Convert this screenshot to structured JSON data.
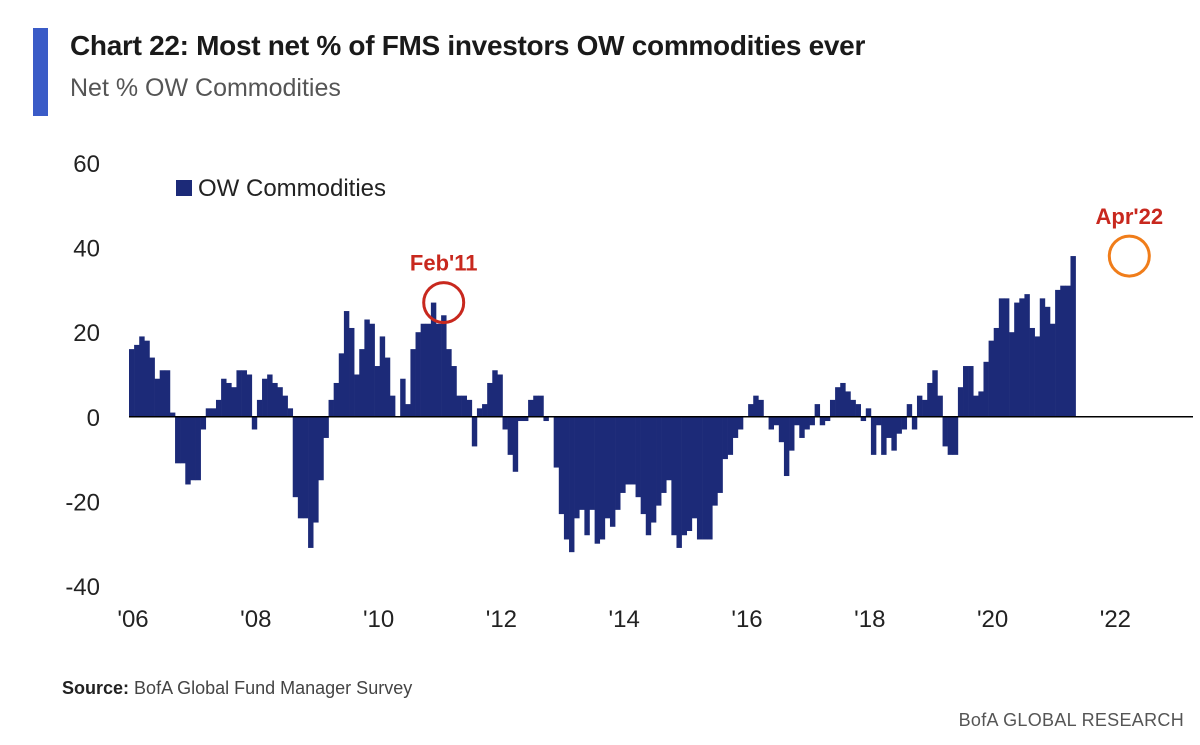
{
  "header": {
    "title": "Chart 22: Most net % of FMS investors OW commodities ever",
    "subtitle": "Net % OW Commodities"
  },
  "footer": {
    "source_label": "Source:",
    "source_text": "BofA Global Fund Manager Survey",
    "brand": "BofA GLOBAL RESEARCH"
  },
  "colors": {
    "bar": "#1c2a78",
    "accent": "#3a5bc7",
    "annotation_red": "#c8281e",
    "annotation_orange": "#f07d1a"
  },
  "chart_data": {
    "type": "bar",
    "title": "Chart 22: Most net % of FMS investors OW commodities ever",
    "subtitle": "Net % OW Commodities",
    "xlabel": "",
    "ylabel": "",
    "ylim": [
      -40,
      60
    ],
    "yticks": [
      60,
      40,
      20,
      0,
      -20,
      -40
    ],
    "xticks": [
      "'06",
      "'08",
      "'10",
      "'12",
      "'14",
      "'16",
      "'18",
      "'20",
      "'22"
    ],
    "xtick_years": [
      2006,
      2008,
      2010,
      2012,
      2014,
      2016,
      2018,
      2020,
      2022
    ],
    "x_start": "2006-01",
    "legend": {
      "entry": "OW Commodities",
      "placement": "top-left"
    },
    "grid": false,
    "series": [
      {
        "name": "OW Commodities",
        "values": [
          16,
          17,
          19,
          18,
          14,
          9,
          11,
          11,
          1,
          -11,
          -11,
          -16,
          -15,
          -15,
          -3,
          2,
          2,
          4,
          9,
          8,
          7,
          11,
          11,
          10,
          -3,
          4,
          9,
          10,
          8,
          7,
          5,
          2,
          -19,
          -24,
          -24,
          -31,
          -25,
          -15,
          -5,
          4,
          8,
          15,
          25,
          21,
          10,
          16,
          23,
          22,
          12,
          19,
          14,
          5,
          0,
          9,
          3,
          16,
          20,
          22,
          22,
          27,
          22,
          24,
          16,
          12,
          5,
          5,
          4,
          -7,
          2,
          3,
          8,
          11,
          10,
          -3,
          -9,
          -13,
          -1,
          -1,
          4,
          5,
          5,
          -1,
          0,
          -12,
          -23,
          -29,
          -32,
          -24,
          -22,
          -28,
          -22,
          -30,
          -29,
          -24,
          -26,
          -22,
          -18,
          -16,
          -16,
          -19,
          -23,
          -28,
          -25,
          -21,
          -18,
          -15,
          -28,
          -31,
          -28,
          -27,
          -24,
          -29,
          -29,
          -29,
          -21,
          -18,
          -10,
          -9,
          -5,
          -3,
          0,
          3,
          5,
          4,
          0,
          -3,
          -2,
          -6,
          -14,
          -8,
          -2,
          -5,
          -3,
          -2,
          3,
          -2,
          -1,
          4,
          7,
          8,
          6,
          4,
          3,
          -1,
          2,
          -9,
          -2,
          -9,
          -5,
          -8,
          -4,
          -3,
          3,
          -3,
          5,
          4,
          8,
          11,
          5,
          -7,
          -9,
          -9,
          7,
          12,
          12,
          5,
          6,
          13,
          18,
          21,
          28,
          28,
          20,
          27,
          28,
          29,
          21,
          19,
          28,
          26,
          22,
          30,
          31,
          31,
          38
        ]
      }
    ],
    "annotations": [
      {
        "label": "Feb'11",
        "date": "2011-02",
        "value": 27,
        "color": "#c8281e"
      },
      {
        "label": "Apr'22",
        "date": "2022-04",
        "value": 38,
        "color": "#f07d1a"
      }
    ]
  }
}
